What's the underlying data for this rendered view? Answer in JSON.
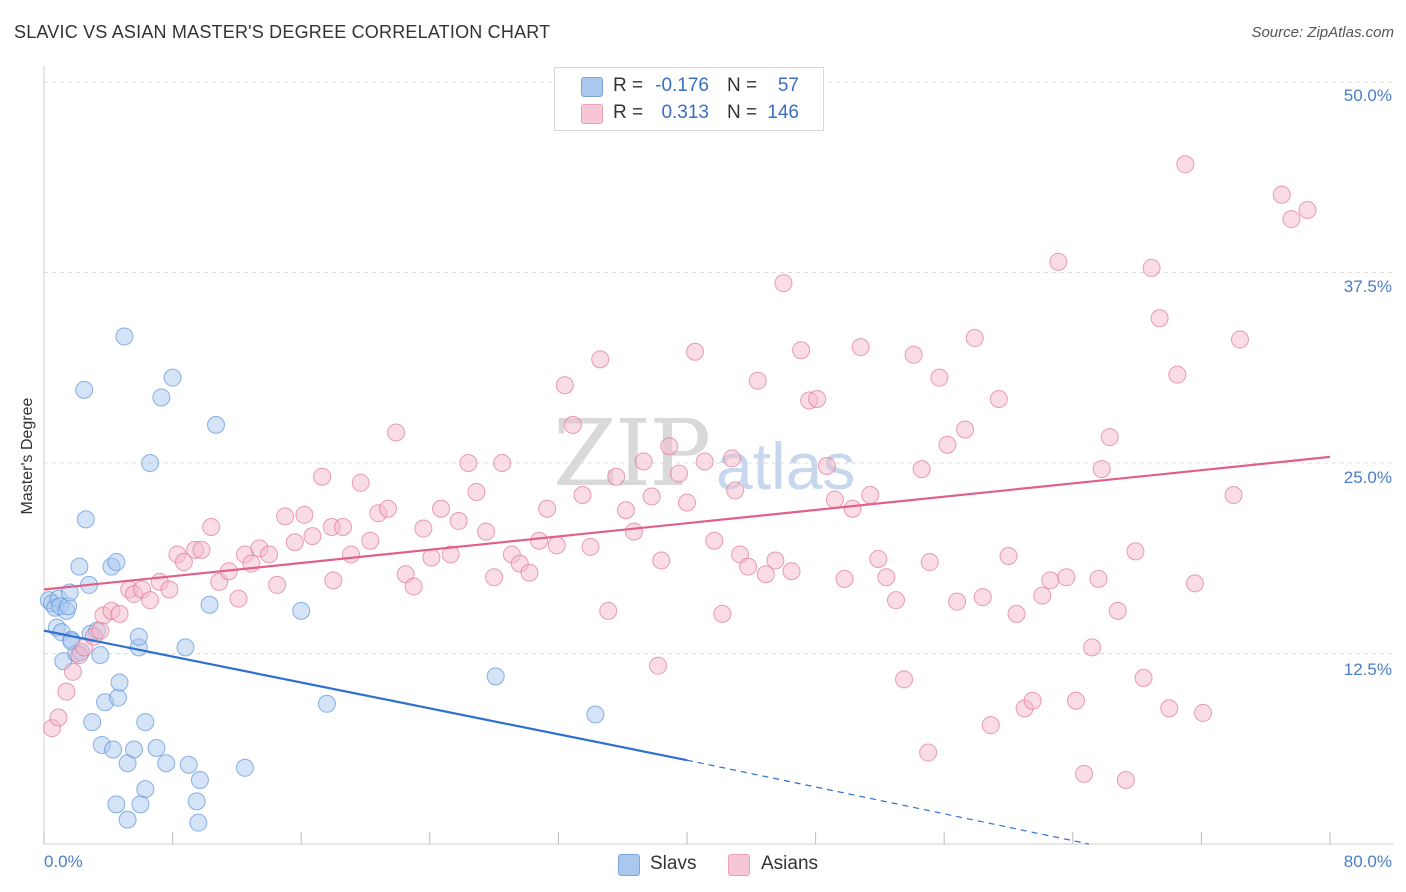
{
  "title": "SLAVIC VS ASIAN MASTER'S DEGREE CORRELATION CHART",
  "source": "Source: ZipAtlas.com",
  "watermark": {
    "part1": "ZIP",
    "part2": "atlas"
  },
  "stats": [
    {
      "r_label": "R =",
      "r_value": "-0.176",
      "n_label": "N =",
      "n_value": "57",
      "color": "#aac8ee"
    },
    {
      "r_label": "R =",
      "r_value": "0.313",
      "n_label": "N =",
      "n_value": "146",
      "color": "#f6b9cc"
    }
  ],
  "legend": [
    {
      "label": "Slavs",
      "color": "#aac8ee"
    },
    {
      "label": "Asians",
      "color": "#f6b9cc"
    }
  ],
  "chart_data": {
    "type": "scatter",
    "title": "SLAVIC VS ASIAN MASTER'S DEGREE CORRELATION CHART",
    "ylabel": "Master's Degree",
    "xlabel": "",
    "xlim": [
      0,
      80
    ],
    "ylim": [
      0,
      50
    ],
    "x_tick_labels": [
      "0.0%",
      "80.0%"
    ],
    "y_tick_labels": [
      "12.5%",
      "25.0%",
      "37.5%",
      "50.0%"
    ],
    "y_ticks": [
      12.5,
      25.0,
      37.5,
      50.0
    ],
    "grid": true,
    "series": [
      {
        "name": "Slavs",
        "color": "#5b94dc",
        "fill": "#aac8ee",
        "trend": {
          "x0": 0,
          "y0": 14.0,
          "x1": 40,
          "y1": 5.5,
          "dash_to": 65,
          "dash_y": 0.0
        },
        "points": [
          [
            0.3,
            16.0
          ],
          [
            0.5,
            15.8
          ],
          [
            0.7,
            15.5
          ],
          [
            0.8,
            14.2
          ],
          [
            0.9,
            16.1
          ],
          [
            1.0,
            15.6
          ],
          [
            1.1,
            13.9
          ],
          [
            1.2,
            12.0
          ],
          [
            1.4,
            15.3
          ],
          [
            1.5,
            15.6
          ],
          [
            1.6,
            16.5
          ],
          [
            1.7,
            13.4
          ],
          [
            2.0,
            12.5
          ],
          [
            2.2,
            18.2
          ],
          [
            2.3,
            12.6
          ],
          [
            2.5,
            29.8
          ],
          [
            2.6,
            21.3
          ],
          [
            2.8,
            17.0
          ],
          [
            2.9,
            13.8
          ],
          [
            3.0,
            8.0
          ],
          [
            3.3,
            14.0
          ],
          [
            3.5,
            12.4
          ],
          [
            3.6,
            6.5
          ],
          [
            3.8,
            9.3
          ],
          [
            4.2,
            18.2
          ],
          [
            4.3,
            6.2
          ],
          [
            4.5,
            18.5
          ],
          [
            4.6,
            9.6
          ],
          [
            4.7,
            10.6
          ],
          [
            5.0,
            33.3
          ],
          [
            5.2,
            5.3
          ],
          [
            5.6,
            6.2
          ],
          [
            5.9,
            12.9
          ],
          [
            5.9,
            13.6
          ],
          [
            6.3,
            3.6
          ],
          [
            6.3,
            8.0
          ],
          [
            6.6,
            25.0
          ],
          [
            7.0,
            6.3
          ],
          [
            7.3,
            29.3
          ],
          [
            7.6,
            5.3
          ],
          [
            8.0,
            30.6
          ],
          [
            8.8,
            12.9
          ],
          [
            9.0,
            5.2
          ],
          [
            9.5,
            2.8
          ],
          [
            9.6,
            1.4
          ],
          [
            9.7,
            4.2
          ],
          [
            10.3,
            15.7
          ],
          [
            10.7,
            27.5
          ],
          [
            12.5,
            5.0
          ],
          [
            16.0,
            15.3
          ],
          [
            17.6,
            9.2
          ],
          [
            28.1,
            11.0
          ],
          [
            34.3,
            8.5
          ],
          [
            5.2,
            1.6
          ],
          [
            4.5,
            2.6
          ],
          [
            6.0,
            2.6
          ],
          [
            1.7,
            13.3
          ]
        ]
      },
      {
        "name": "Asians",
        "color": "#e07898",
        "fill": "#f6b9cc",
        "trend": {
          "x0": 0,
          "y0": 16.7,
          "x1": 80,
          "y1": 25.4
        },
        "points": [
          [
            0.5,
            7.6
          ],
          [
            0.9,
            8.3
          ],
          [
            1.4,
            10.0
          ],
          [
            1.8,
            11.3
          ],
          [
            2.2,
            12.4
          ],
          [
            2.5,
            12.9
          ],
          [
            3.1,
            13.6
          ],
          [
            3.5,
            14.0
          ],
          [
            3.7,
            15.0
          ],
          [
            4.2,
            15.3
          ],
          [
            4.7,
            15.1
          ],
          [
            5.3,
            16.7
          ],
          [
            5.6,
            16.4
          ],
          [
            6.1,
            16.7
          ],
          [
            6.6,
            16.0
          ],
          [
            7.2,
            17.2
          ],
          [
            7.8,
            16.7
          ],
          [
            8.3,
            19.0
          ],
          [
            8.7,
            18.5
          ],
          [
            9.4,
            19.3
          ],
          [
            9.8,
            19.3
          ],
          [
            10.4,
            20.8
          ],
          [
            10.9,
            17.2
          ],
          [
            11.5,
            17.9
          ],
          [
            12.1,
            16.1
          ],
          [
            12.5,
            19.0
          ],
          [
            12.9,
            18.4
          ],
          [
            13.4,
            19.4
          ],
          [
            14.0,
            19.0
          ],
          [
            14.5,
            17.0
          ],
          [
            15.0,
            21.5
          ],
          [
            15.6,
            19.8
          ],
          [
            16.2,
            21.6
          ],
          [
            16.7,
            20.2
          ],
          [
            17.3,
            24.1
          ],
          [
            17.9,
            20.8
          ],
          [
            18.0,
            17.3
          ],
          [
            18.6,
            20.8
          ],
          [
            19.1,
            19.0
          ],
          [
            19.7,
            23.7
          ],
          [
            20.3,
            19.9
          ],
          [
            20.8,
            21.7
          ],
          [
            21.4,
            22.0
          ],
          [
            21.9,
            27.0
          ],
          [
            22.5,
            17.7
          ],
          [
            23.0,
            16.9
          ],
          [
            23.6,
            20.7
          ],
          [
            24.1,
            18.8
          ],
          [
            24.7,
            22.0
          ],
          [
            25.3,
            19.0
          ],
          [
            25.8,
            21.2
          ],
          [
            26.4,
            25.0
          ],
          [
            26.9,
            23.1
          ],
          [
            27.5,
            20.5
          ],
          [
            28.0,
            17.5
          ],
          [
            28.5,
            25.0
          ],
          [
            29.1,
            19.0
          ],
          [
            29.6,
            18.4
          ],
          [
            30.2,
            17.8
          ],
          [
            30.8,
            19.9
          ],
          [
            31.3,
            22.0
          ],
          [
            31.9,
            19.6
          ],
          [
            32.4,
            30.1
          ],
          [
            32.9,
            27.5
          ],
          [
            33.5,
            22.9
          ],
          [
            34.0,
            19.5
          ],
          [
            34.6,
            31.8
          ],
          [
            35.1,
            15.3
          ],
          [
            35.6,
            24.1
          ],
          [
            36.2,
            21.9
          ],
          [
            36.7,
            20.5
          ],
          [
            37.3,
            25.1
          ],
          [
            37.8,
            22.8
          ],
          [
            38.4,
            18.6
          ],
          [
            38.9,
            26.1
          ],
          [
            39.5,
            24.3
          ],
          [
            40.0,
            22.4
          ],
          [
            40.5,
            32.3
          ],
          [
            41.1,
            25.1
          ],
          [
            41.7,
            19.9
          ],
          [
            42.2,
            15.1
          ],
          [
            42.8,
            25.3
          ],
          [
            43.3,
            19.0
          ],
          [
            43.8,
            18.2
          ],
          [
            44.4,
            30.4
          ],
          [
            44.9,
            17.7
          ],
          [
            45.5,
            18.6
          ],
          [
            46.0,
            36.8
          ],
          [
            46.5,
            17.9
          ],
          [
            47.1,
            32.4
          ],
          [
            47.6,
            29.1
          ],
          [
            48.1,
            29.2
          ],
          [
            48.7,
            24.8
          ],
          [
            49.2,
            22.6
          ],
          [
            49.8,
            17.4
          ],
          [
            50.3,
            22.0
          ],
          [
            50.8,
            32.6
          ],
          [
            51.4,
            22.9
          ],
          [
            51.9,
            18.7
          ],
          [
            52.4,
            17.5
          ],
          [
            53.0,
            16.0
          ],
          [
            53.5,
            10.8
          ],
          [
            54.1,
            32.1
          ],
          [
            54.6,
            24.6
          ],
          [
            55.1,
            18.5
          ],
          [
            55.7,
            30.6
          ],
          [
            56.2,
            26.2
          ],
          [
            56.8,
            15.9
          ],
          [
            57.3,
            27.2
          ],
          [
            57.9,
            33.2
          ],
          [
            58.4,
            16.2
          ],
          [
            58.9,
            7.8
          ],
          [
            59.4,
            29.2
          ],
          [
            60.0,
            18.9
          ],
          [
            60.5,
            15.1
          ],
          [
            61.0,
            8.9
          ],
          [
            61.5,
            9.4
          ],
          [
            62.1,
            16.3
          ],
          [
            62.6,
            17.3
          ],
          [
            63.1,
            38.2
          ],
          [
            63.6,
            17.5
          ],
          [
            64.2,
            9.4
          ],
          [
            64.7,
            4.6
          ],
          [
            65.2,
            12.9
          ],
          [
            65.8,
            24.6
          ],
          [
            66.3,
            26.7
          ],
          [
            66.8,
            15.3
          ],
          [
            67.3,
            4.2
          ],
          [
            67.9,
            19.2
          ],
          [
            68.4,
            10.9
          ],
          [
            68.9,
            37.8
          ],
          [
            69.4,
            34.5
          ],
          [
            70.0,
            8.9
          ],
          [
            70.5,
            30.8
          ],
          [
            71.0,
            44.6
          ],
          [
            71.6,
            17.1
          ],
          [
            72.1,
            8.6
          ],
          [
            74.0,
            22.9
          ],
          [
            77.0,
            42.6
          ],
          [
            77.6,
            41.0
          ],
          [
            78.6,
            41.6
          ],
          [
            74.4,
            33.1
          ],
          [
            65.6,
            17.4
          ],
          [
            55.0,
            6.0
          ],
          [
            43.0,
            23.2
          ],
          [
            38.2,
            11.7
          ]
        ]
      }
    ]
  }
}
